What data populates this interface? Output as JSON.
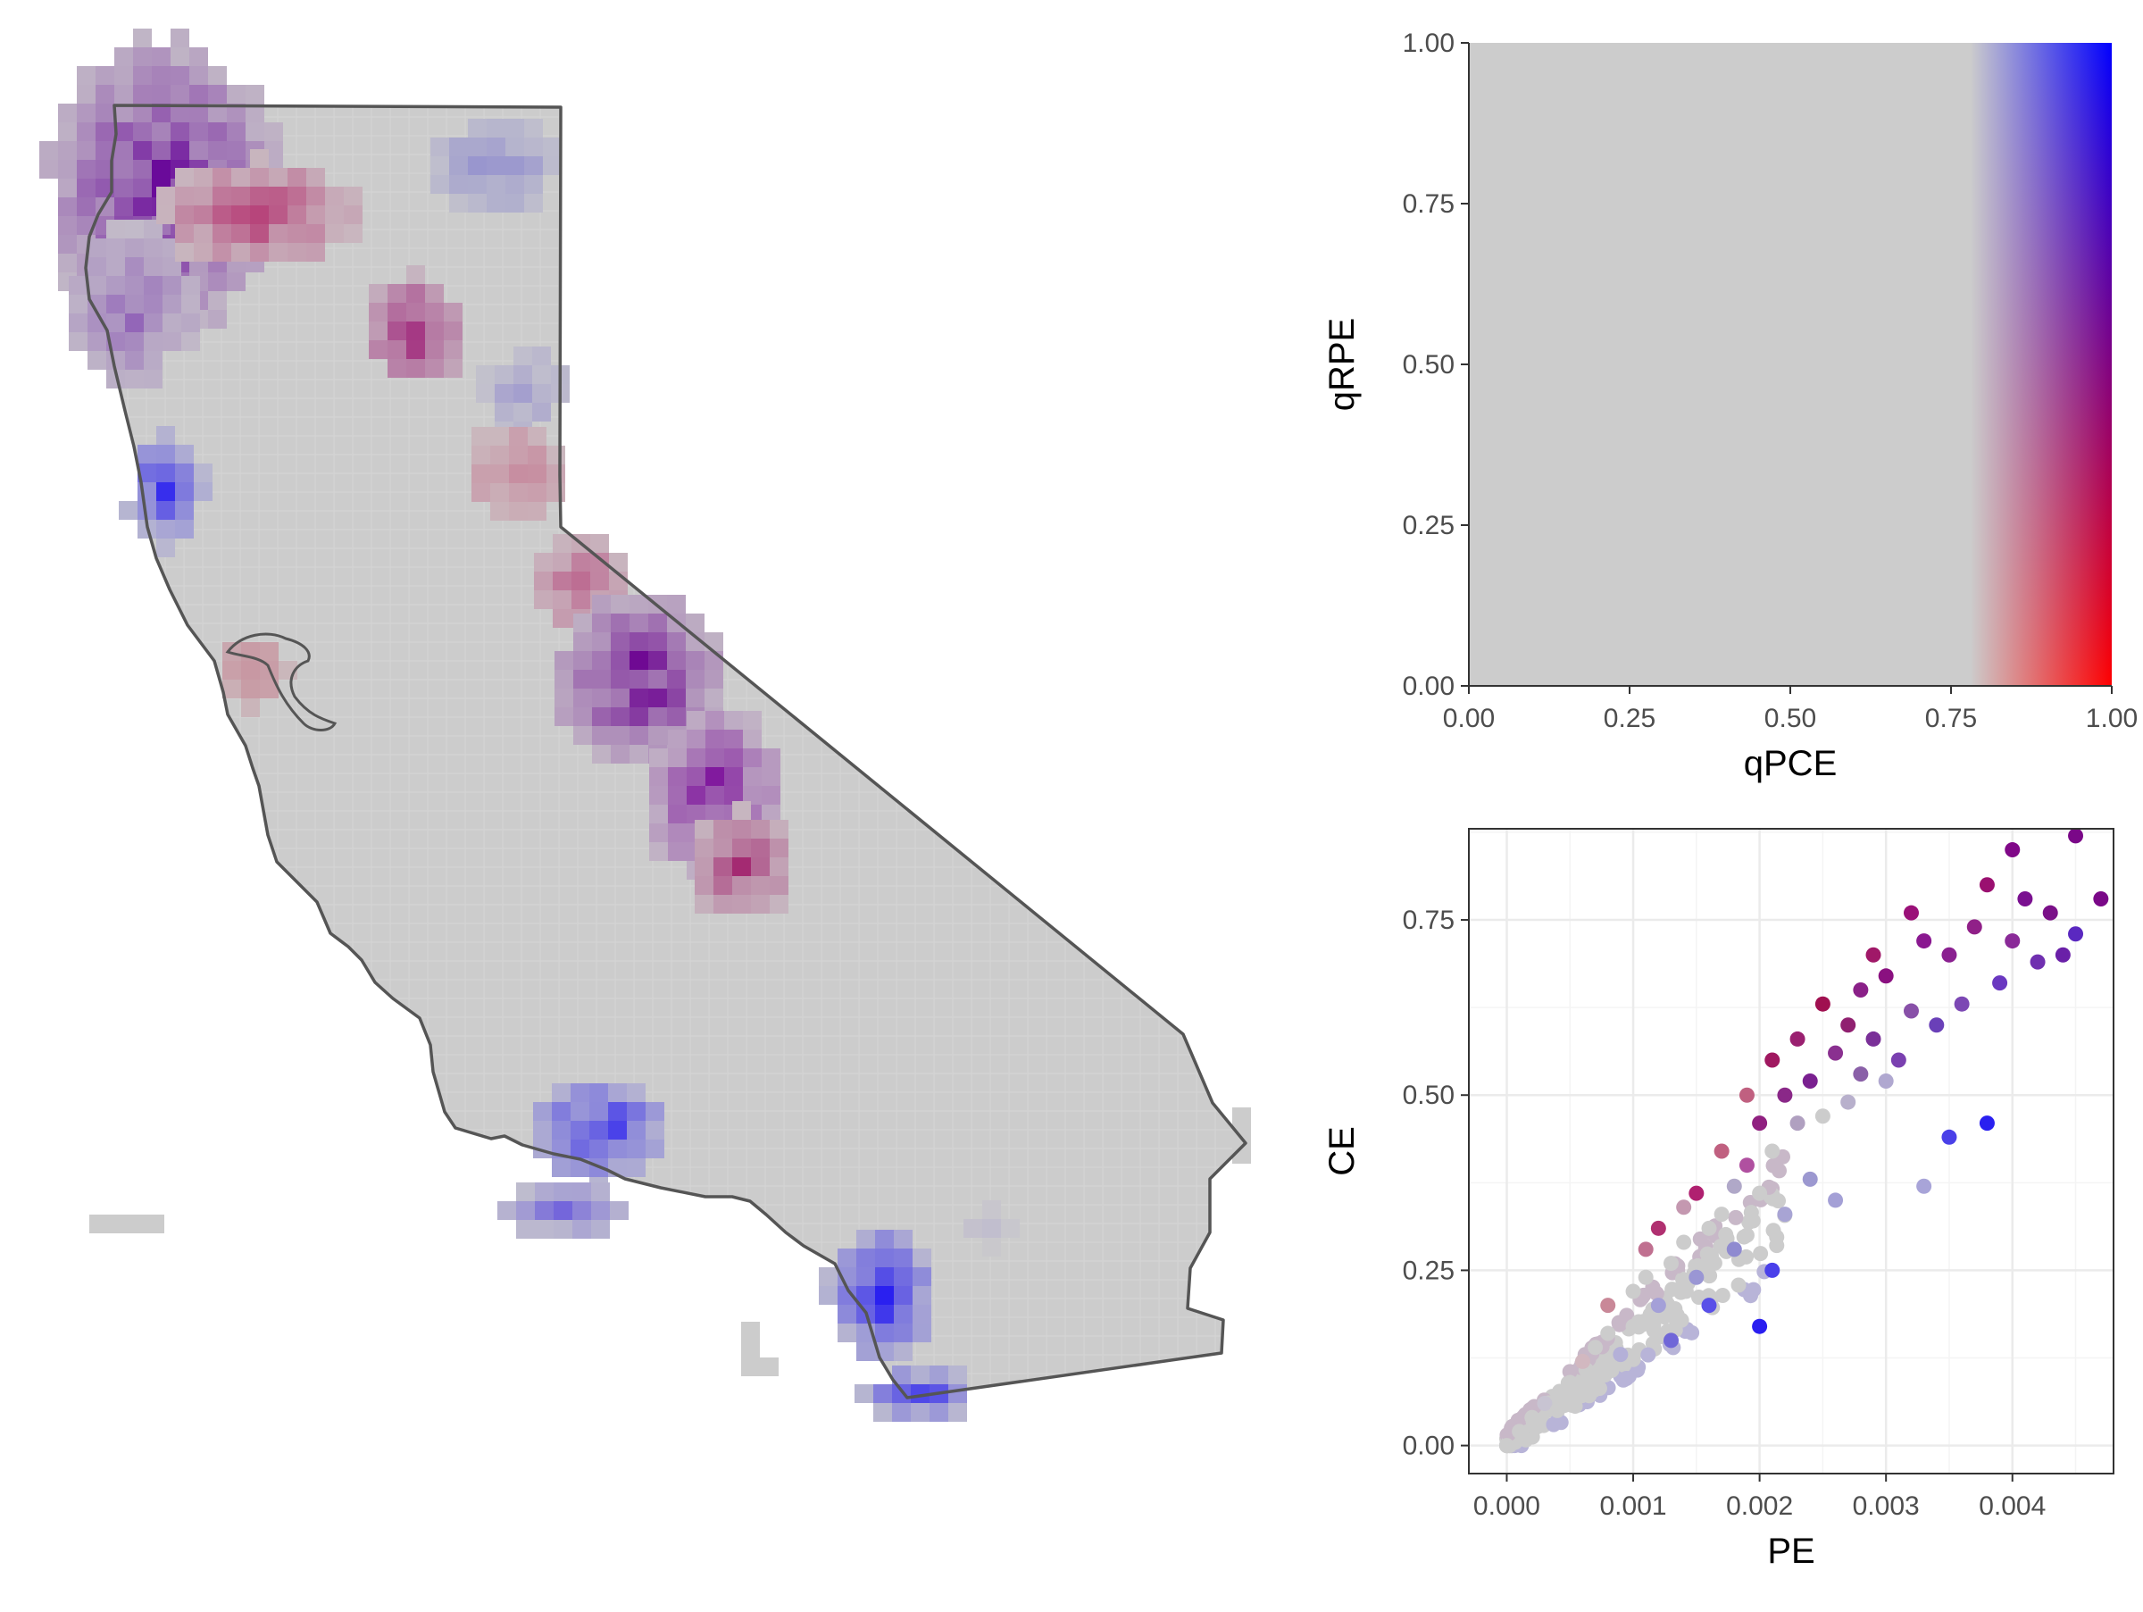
{
  "figure": {
    "colors": {
      "low": "#cccccc",
      "pce_high": "#2200ff",
      "rpe_high": "#ff1111",
      "both_high": "#7a0080",
      "outline": "#555555",
      "panel_border": "#333333",
      "grid_major": "#ebebeb",
      "tick_label": "#4d4d4d",
      "axis_title": "#000000"
    }
  },
  "map": {
    "region": "California",
    "outline_color": "#555555",
    "notable_clusters": [
      {
        "area": "north coast",
        "color": "purple"
      },
      {
        "area": "northeast",
        "color": "blue"
      },
      {
        "area": "sierra nevada",
        "color": "purple-red"
      },
      {
        "area": "santa barbara / channel islands",
        "color": "blue"
      },
      {
        "area": "los angeles coast",
        "color": "blue"
      }
    ]
  },
  "chart_data": [
    {
      "type": "heatmap",
      "title": "",
      "xlabel": "qPCE",
      "ylabel": "qRPE",
      "xlim": [
        0,
        1
      ],
      "ylim": [
        0,
        1
      ],
      "xticks": [
        "0.00",
        "0.25",
        "0.50",
        "0.75",
        "1.00"
      ],
      "yticks": [
        "0.00",
        "0.25",
        "0.50",
        "0.75",
        "1.00"
      ],
      "grid": false,
      "color_scale": {
        "neutral": "#cccccc",
        "x_high_y_high": "#0000ff",
        "x_high_y_low": "#ff0000",
        "x_high_y_mid": "#800080",
        "gradient_start_x": 0.78
      }
    },
    {
      "type": "scatter",
      "title": "",
      "xlabel": "PE",
      "ylabel": "CE",
      "xlim": [
        -0.0003,
        0.0048
      ],
      "ylim": [
        -0.04,
        0.88
      ],
      "xticks": [
        "0.000",
        "0.001",
        "0.002",
        "0.003",
        "0.004"
      ],
      "yticks": [
        "0.00",
        "0.25",
        "0.50",
        "0.75"
      ],
      "grid": true,
      "points": [
        {
          "x": 0.0,
          "y": 0.0,
          "c": "#cccccc"
        },
        {
          "x": 0.0001,
          "y": 0.02,
          "c": "#cccccc"
        },
        {
          "x": 0.0002,
          "y": 0.04,
          "c": "#cccccc"
        },
        {
          "x": 0.0003,
          "y": 0.06,
          "c": "#c8c4d2"
        },
        {
          "x": 0.0004,
          "y": 0.05,
          "c": "#cccccc"
        },
        {
          "x": 0.0005,
          "y": 0.09,
          "c": "#cccccc"
        },
        {
          "x": 0.0006,
          "y": 0.12,
          "c": "#d2b8c0"
        },
        {
          "x": 0.0006,
          "y": 0.08,
          "c": "#cccccc"
        },
        {
          "x": 0.0007,
          "y": 0.14,
          "c": "#cccccc"
        },
        {
          "x": 0.0008,
          "y": 0.16,
          "c": "#cccccc"
        },
        {
          "x": 0.0008,
          "y": 0.2,
          "c": "#c98898"
        },
        {
          "x": 0.0009,
          "y": 0.13,
          "c": "#b4b0d8"
        },
        {
          "x": 0.001,
          "y": 0.22,
          "c": "#cccccc"
        },
        {
          "x": 0.001,
          "y": 0.17,
          "c": "#cccccc"
        },
        {
          "x": 0.0011,
          "y": 0.24,
          "c": "#cccccc"
        },
        {
          "x": 0.0011,
          "y": 0.28,
          "c": "#c07090"
        },
        {
          "x": 0.0012,
          "y": 0.2,
          "c": "#a4a0d8"
        },
        {
          "x": 0.0012,
          "y": 0.31,
          "c": "#b03070"
        },
        {
          "x": 0.0013,
          "y": 0.26,
          "c": "#cccccc"
        },
        {
          "x": 0.0013,
          "y": 0.15,
          "c": "#7066d8"
        },
        {
          "x": 0.0014,
          "y": 0.34,
          "c": "#c498b0"
        },
        {
          "x": 0.0014,
          "y": 0.29,
          "c": "#cccccc"
        },
        {
          "x": 0.0015,
          "y": 0.36,
          "c": "#b02070"
        },
        {
          "x": 0.0015,
          "y": 0.24,
          "c": "#9a96d4"
        },
        {
          "x": 0.0016,
          "y": 0.31,
          "c": "#cccccc"
        },
        {
          "x": 0.0016,
          "y": 0.2,
          "c": "#5a50e8"
        },
        {
          "x": 0.0017,
          "y": 0.42,
          "c": "#c06080"
        },
        {
          "x": 0.0017,
          "y": 0.33,
          "c": "#cccccc"
        },
        {
          "x": 0.0018,
          "y": 0.37,
          "c": "#b0a8c8"
        },
        {
          "x": 0.0018,
          "y": 0.28,
          "c": "#8f8ad0"
        },
        {
          "x": 0.0019,
          "y": 0.5,
          "c": "#c06080"
        },
        {
          "x": 0.0019,
          "y": 0.4,
          "c": "#b050a0"
        },
        {
          "x": 0.0019,
          "y": 0.3,
          "c": "#cccccc"
        },
        {
          "x": 0.002,
          "y": 0.46,
          "c": "#902080"
        },
        {
          "x": 0.002,
          "y": 0.36,
          "c": "#cccccc"
        },
        {
          "x": 0.002,
          "y": 0.17,
          "c": "#2a1ef0"
        },
        {
          "x": 0.0021,
          "y": 0.55,
          "c": "#a01860"
        },
        {
          "x": 0.0021,
          "y": 0.42,
          "c": "#cccccc"
        },
        {
          "x": 0.0021,
          "y": 0.25,
          "c": "#4a40ea"
        },
        {
          "x": 0.0022,
          "y": 0.5,
          "c": "#8a2888"
        },
        {
          "x": 0.0022,
          "y": 0.33,
          "c": "#a8a4d4"
        },
        {
          "x": 0.0023,
          "y": 0.58,
          "c": "#9a2070"
        },
        {
          "x": 0.0023,
          "y": 0.46,
          "c": "#b0a0c0"
        },
        {
          "x": 0.0024,
          "y": 0.52,
          "c": "#7a2090"
        },
        {
          "x": 0.0024,
          "y": 0.38,
          "c": "#9c98d0"
        },
        {
          "x": 0.0025,
          "y": 0.63,
          "c": "#a01050"
        },
        {
          "x": 0.0025,
          "y": 0.47,
          "c": "#cccccc"
        },
        {
          "x": 0.0026,
          "y": 0.56,
          "c": "#8a3090"
        },
        {
          "x": 0.0026,
          "y": 0.35,
          "c": "#a4a0d6"
        },
        {
          "x": 0.0027,
          "y": 0.6,
          "c": "#902070"
        },
        {
          "x": 0.0027,
          "y": 0.49,
          "c": "#b8b0cc"
        },
        {
          "x": 0.0028,
          "y": 0.65,
          "c": "#8a2088"
        },
        {
          "x": 0.0028,
          "y": 0.53,
          "c": "#8a60a8"
        },
        {
          "x": 0.0029,
          "y": 0.7,
          "c": "#a01868"
        },
        {
          "x": 0.0029,
          "y": 0.58,
          "c": "#7a3098"
        },
        {
          "x": 0.003,
          "y": 0.67,
          "c": "#8a1080"
        },
        {
          "x": 0.003,
          "y": 0.52,
          "c": "#b0a8d0"
        },
        {
          "x": 0.0031,
          "y": 0.55,
          "c": "#7a40b0"
        },
        {
          "x": 0.0032,
          "y": 0.76,
          "c": "#9a1078"
        },
        {
          "x": 0.0032,
          "y": 0.62,
          "c": "#8850a8"
        },
        {
          "x": 0.0033,
          "y": 0.72,
          "c": "#8a1890"
        },
        {
          "x": 0.0033,
          "y": 0.37,
          "c": "#a8a4d8"
        },
        {
          "x": 0.0034,
          "y": 0.6,
          "c": "#6a40b8"
        },
        {
          "x": 0.0035,
          "y": 0.7,
          "c": "#8a2090"
        },
        {
          "x": 0.0035,
          "y": 0.44,
          "c": "#4a40e8"
        },
        {
          "x": 0.0036,
          "y": 0.63,
          "c": "#7c48b4"
        },
        {
          "x": 0.0037,
          "y": 0.74,
          "c": "#902088"
        },
        {
          "x": 0.0038,
          "y": 0.8,
          "c": "#9a1070"
        },
        {
          "x": 0.0038,
          "y": 0.46,
          "c": "#2a20f0"
        },
        {
          "x": 0.0039,
          "y": 0.66,
          "c": "#6a38c0"
        },
        {
          "x": 0.004,
          "y": 0.85,
          "c": "#800888"
        },
        {
          "x": 0.004,
          "y": 0.72,
          "c": "#8a2a98"
        },
        {
          "x": 0.0041,
          "y": 0.78,
          "c": "#7a1090"
        },
        {
          "x": 0.0042,
          "y": 0.69,
          "c": "#7030b0"
        },
        {
          "x": 0.0043,
          "y": 0.76,
          "c": "#7a1088"
        },
        {
          "x": 0.0044,
          "y": 0.7,
          "c": "#6a20a8"
        },
        {
          "x": 0.0045,
          "y": 0.87,
          "c": "#7a0888"
        },
        {
          "x": 0.0045,
          "y": 0.73,
          "c": "#5a28c0"
        },
        {
          "x": 0.0047,
          "y": 0.78,
          "c": "#7a0888"
        }
      ]
    }
  ]
}
